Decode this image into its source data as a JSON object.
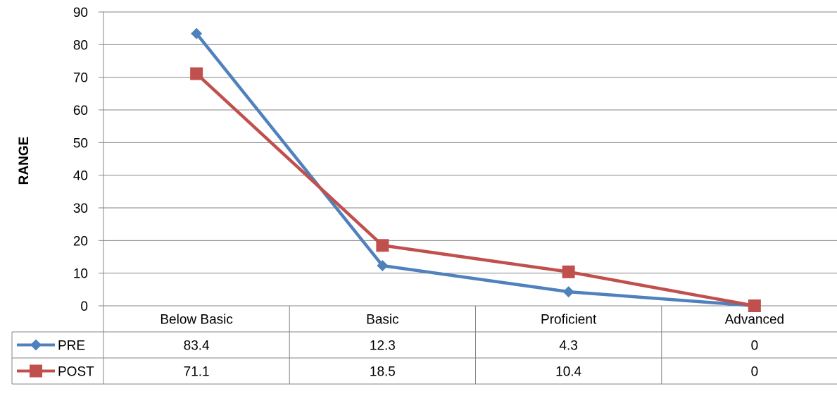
{
  "chart_data": {
    "type": "line",
    "title": "",
    "xlabel": "",
    "ylabel": "RANGE",
    "ylim": [
      0,
      90
    ],
    "yticks": [
      0,
      10,
      20,
      30,
      40,
      50,
      60,
      70,
      80,
      90
    ],
    "categories": [
      "Below Basic",
      "Basic",
      "Proficient",
      "Advanced"
    ],
    "series": [
      {
        "name": "PRE",
        "values": [
          83.4,
          12.3,
          4.3,
          0
        ],
        "value_labels": [
          "83.4",
          "12.3",
          "4.3",
          "0"
        ],
        "color": "#4F81BD",
        "marker": "diamond"
      },
      {
        "name": "POST",
        "values": [
          71.1,
          18.5,
          10.4,
          0
        ],
        "value_labels": [
          "71.1",
          "18.5",
          "10.4",
          "0"
        ],
        "color": "#C0504D",
        "marker": "square"
      }
    ],
    "grid": true,
    "legend": "data-table"
  }
}
